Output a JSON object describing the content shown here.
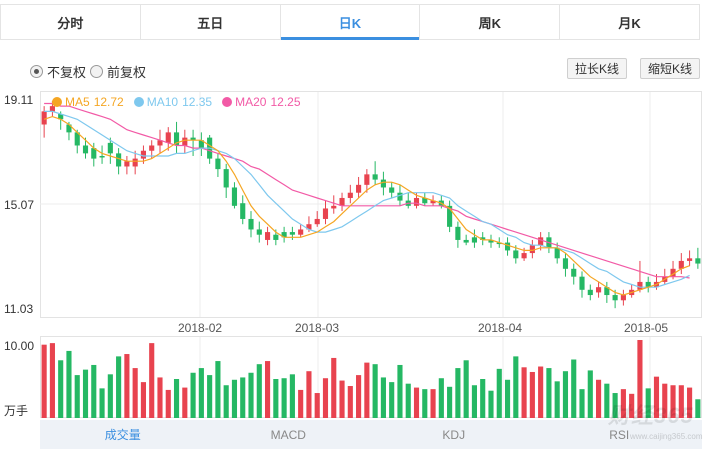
{
  "tabs": [
    {
      "label": "分时",
      "active": false
    },
    {
      "label": "五日",
      "active": false
    },
    {
      "label": "日K",
      "active": true
    },
    {
      "label": "周K",
      "active": false
    },
    {
      "label": "月K",
      "active": false
    }
  ],
  "adjust": {
    "option1": "不复权",
    "option2": "前复权",
    "selected": "不复权"
  },
  "buttons": {
    "lengthen": "拉长K线",
    "shorten": "缩短K线"
  },
  "legend": {
    "ma5": {
      "label": "MA5",
      "value": "12.72",
      "color": "#f5a623"
    },
    "ma10": {
      "label": "MA10",
      "value": "12.35",
      "color": "#7ec8ee"
    },
    "ma20": {
      "label": "MA20",
      "value": "12.25",
      "color": "#f25aa6"
    }
  },
  "price_axis": {
    "top": "19.11",
    "mid": "15.07",
    "bottom": "11.03"
  },
  "date_labels": [
    "2018-02",
    "2018-03",
    "2018-04",
    "2018-05"
  ],
  "volume_axis": {
    "top": "10.00",
    "unit": "万手"
  },
  "bottom_tabs": [
    {
      "label": "成交量",
      "active": true
    },
    {
      "label": "MACD",
      "active": false
    },
    {
      "label": "KDJ",
      "active": false
    },
    {
      "label": "RSI",
      "active": false
    }
  ],
  "watermark": {
    "text": "财经365",
    "sub": "www.caijing365.com"
  },
  "colors": {
    "up": "#e8434f",
    "down": "#25b864",
    "accent": "#3b8fe0"
  },
  "chart_data": {
    "type": "candlestick",
    "ylim": [
      11.03,
      19.11
    ],
    "volume_ylim": [
      0,
      10.0
    ],
    "candles": [
      [
        18.1,
        18.6,
        18.8,
        17.6,
        9.4,
        "up"
      ],
      [
        18.6,
        18.8,
        19.0,
        18.4,
        9.6,
        "up"
      ],
      [
        18.5,
        18.3,
        18.6,
        17.9,
        7.4,
        "down"
      ],
      [
        18.1,
        17.8,
        18.2,
        17.5,
        8.6,
        "down"
      ],
      [
        17.8,
        17.3,
        17.9,
        17.0,
        5.5,
        "down"
      ],
      [
        17.3,
        17.0,
        17.6,
        16.8,
        6.2,
        "down"
      ],
      [
        17.2,
        16.8,
        17.4,
        16.5,
        6.8,
        "down"
      ],
      [
        16.9,
        16.9,
        17.3,
        16.6,
        3.8,
        "down"
      ],
      [
        17.4,
        17.0,
        17.6,
        16.6,
        5.6,
        "down"
      ],
      [
        17.0,
        16.5,
        17.2,
        16.2,
        7.9,
        "down"
      ],
      [
        16.7,
        16.5,
        16.9,
        16.2,
        8.2,
        "up"
      ],
      [
        16.5,
        16.8,
        17.1,
        16.2,
        6.4,
        "up"
      ],
      [
        16.8,
        17.1,
        17.3,
        16.6,
        4.6,
        "up"
      ],
      [
        17.1,
        17.3,
        17.5,
        16.8,
        9.6,
        "up"
      ],
      [
        17.3,
        17.5,
        17.9,
        17.0,
        5.2,
        "up"
      ],
      [
        17.4,
        17.8,
        18.0,
        17.1,
        3.6,
        "up"
      ],
      [
        17.8,
        17.3,
        18.2,
        17.0,
        5.0,
        "down"
      ],
      [
        17.3,
        17.6,
        17.9,
        17.0,
        3.9,
        "up"
      ],
      [
        17.6,
        17.5,
        17.9,
        16.9,
        5.8,
        "down"
      ],
      [
        17.5,
        17.2,
        17.8,
        16.9,
        6.4,
        "down"
      ],
      [
        17.6,
        16.8,
        17.7,
        16.6,
        5.5,
        "down"
      ],
      [
        16.8,
        16.4,
        17.0,
        16.1,
        7.3,
        "down"
      ],
      [
        16.4,
        15.7,
        16.6,
        15.3,
        4.2,
        "down"
      ],
      [
        15.7,
        15.0,
        15.9,
        14.9,
        4.9,
        "down"
      ],
      [
        15.1,
        14.5,
        15.4,
        14.3,
        5.2,
        "down"
      ],
      [
        14.5,
        14.1,
        14.8,
        13.8,
        5.8,
        "down"
      ],
      [
        14.1,
        13.9,
        14.4,
        13.6,
        6.9,
        "down"
      ],
      [
        14.0,
        13.7,
        14.2,
        13.5,
        7.3,
        "up"
      ],
      [
        13.9,
        13.7,
        14.1,
        13.5,
        5.0,
        "down"
      ],
      [
        13.8,
        14.0,
        14.2,
        13.6,
        5.1,
        "down"
      ],
      [
        14.0,
        13.9,
        14.2,
        13.7,
        5.6,
        "down"
      ],
      [
        13.9,
        14.1,
        14.3,
        13.8,
        3.6,
        "up"
      ],
      [
        14.1,
        14.3,
        14.6,
        14.0,
        6.0,
        "up"
      ],
      [
        14.3,
        14.5,
        14.8,
        14.2,
        3.2,
        "up"
      ],
      [
        14.5,
        14.9,
        15.2,
        14.3,
        5.1,
        "up"
      ],
      [
        14.9,
        15.0,
        15.4,
        14.7,
        7.7,
        "up"
      ],
      [
        15.0,
        15.3,
        15.5,
        14.8,
        4.8,
        "up"
      ],
      [
        15.3,
        15.5,
        15.8,
        15.1,
        4.1,
        "up"
      ],
      [
        15.5,
        15.8,
        16.1,
        15.3,
        5.5,
        "up"
      ],
      [
        15.8,
        16.2,
        16.4,
        15.5,
        7.1,
        "up"
      ],
      [
        16.2,
        16.0,
        16.7,
        15.8,
        6.9,
        "down"
      ],
      [
        16.0,
        15.7,
        16.3,
        15.4,
        5.2,
        "down"
      ],
      [
        15.7,
        15.5,
        15.9,
        15.3,
        4.6,
        "down"
      ],
      [
        15.5,
        15.2,
        15.8,
        15.0,
        6.8,
        "down"
      ],
      [
        15.2,
        15.0,
        15.5,
        14.9,
        4.4,
        "down"
      ],
      [
        15.0,
        15.3,
        15.5,
        14.9,
        3.9,
        "up"
      ],
      [
        15.3,
        15.1,
        15.5,
        15.0,
        3.7,
        "down"
      ],
      [
        15.1,
        15.2,
        15.4,
        15.0,
        3.7,
        "up"
      ],
      [
        15.2,
        15.0,
        15.4,
        14.9,
        5.1,
        "down"
      ],
      [
        15.0,
        14.2,
        15.2,
        14.0,
        4.0,
        "down"
      ],
      [
        14.2,
        13.7,
        14.4,
        13.4,
        6.4,
        "down"
      ],
      [
        13.7,
        13.6,
        13.9,
        13.5,
        7.4,
        "down"
      ],
      [
        13.6,
        13.8,
        14.1,
        13.4,
        4.2,
        "down"
      ],
      [
        13.8,
        13.7,
        14.0,
        13.5,
        5.0,
        "down"
      ],
      [
        13.7,
        13.6,
        13.9,
        13.4,
        3.5,
        "down"
      ],
      [
        13.6,
        13.6,
        13.8,
        13.4,
        6.3,
        "down"
      ],
      [
        13.6,
        13.3,
        13.8,
        13.1,
        4.9,
        "down"
      ],
      [
        13.3,
        13.0,
        13.5,
        12.8,
        7.9,
        "down"
      ],
      [
        13.0,
        13.2,
        13.4,
        12.9,
        6.5,
        "up"
      ],
      [
        13.2,
        13.5,
        13.7,
        13.0,
        5.9,
        "up"
      ],
      [
        13.5,
        13.8,
        14.0,
        13.3,
        6.6,
        "up"
      ],
      [
        13.8,
        13.4,
        14.0,
        13.2,
        6.4,
        "down"
      ],
      [
        13.4,
        13.0,
        13.6,
        12.8,
        4.7,
        "down"
      ],
      [
        13.0,
        12.6,
        13.2,
        12.3,
        6.0,
        "down"
      ],
      [
        12.6,
        12.3,
        12.8,
        12.0,
        7.5,
        "down"
      ],
      [
        12.3,
        11.8,
        12.5,
        11.5,
        3.7,
        "down"
      ],
      [
        11.8,
        11.6,
        12.0,
        11.4,
        6.1,
        "down"
      ],
      [
        11.7,
        11.9,
        12.1,
        11.5,
        4.9,
        "up"
      ],
      [
        11.9,
        11.6,
        12.1,
        11.3,
        4.4,
        "down"
      ],
      [
        11.6,
        11.4,
        11.8,
        11.1,
        3.2,
        "down"
      ],
      [
        11.4,
        11.6,
        11.8,
        11.2,
        3.7,
        "up"
      ],
      [
        11.6,
        11.8,
        12.0,
        11.5,
        3.1,
        "up"
      ],
      [
        11.8,
        12.1,
        12.9,
        11.7,
        10.0,
        "up"
      ],
      [
        12.1,
        11.9,
        12.3,
        11.7,
        3.8,
        "down"
      ],
      [
        11.9,
        12.1,
        12.4,
        11.8,
        5.3,
        "up"
      ],
      [
        12.1,
        12.3,
        12.6,
        12.0,
        4.4,
        "up"
      ],
      [
        12.3,
        12.6,
        12.9,
        12.2,
        4.2,
        "up"
      ],
      [
        12.6,
        12.9,
        13.2,
        12.4,
        4.2,
        "up"
      ],
      [
        12.9,
        13.0,
        13.3,
        12.7,
        3.9,
        "up"
      ],
      [
        13.0,
        12.8,
        13.4,
        12.6,
        2.4,
        "down"
      ]
    ],
    "ma5": [
      18.3,
      18.4,
      18.3,
      18.1,
      17.8,
      17.5,
      17.2,
      17.0,
      16.9,
      16.8,
      16.7,
      16.7,
      16.7,
      16.8,
      17.0,
      17.2,
      17.4,
      17.5,
      17.5,
      17.5,
      17.3,
      17.1,
      16.7,
      16.2,
      15.6,
      15.0,
      14.6,
      14.3,
      14.0,
      13.8,
      13.8,
      13.8,
      13.9,
      14.0,
      14.2,
      14.4,
      14.7,
      15.0,
      15.3,
      15.6,
      15.8,
      15.9,
      15.9,
      15.8,
      15.6,
      15.4,
      15.3,
      15.2,
      15.1,
      14.9,
      14.5,
      14.1,
      13.9,
      13.7,
      13.7,
      13.6,
      13.5,
      13.4,
      13.3,
      13.3,
      13.4,
      13.4,
      13.4,
      13.2,
      12.9,
      12.6,
      12.3,
      12.1,
      11.9,
      11.7,
      11.6,
      11.7,
      11.8,
      11.9,
      12.0,
      12.2,
      12.4,
      12.6,
      12.72
    ],
    "ma10": [
      18.6,
      18.6,
      18.5,
      18.4,
      18.3,
      18.1,
      17.9,
      17.7,
      17.5,
      17.3,
      17.1,
      17.0,
      16.9,
      16.9,
      16.9,
      16.9,
      17.0,
      17.0,
      17.1,
      17.2,
      17.2,
      17.1,
      17.0,
      16.8,
      16.5,
      16.2,
      15.8,
      15.4,
      15.1,
      14.8,
      14.5,
      14.3,
      14.1,
      14.0,
      14.0,
      14.1,
      14.2,
      14.4,
      14.6,
      14.8,
      15.0,
      15.2,
      15.3,
      15.4,
      15.5,
      15.5,
      15.5,
      15.5,
      15.4,
      15.3,
      15.0,
      14.8,
      14.6,
      14.4,
      14.3,
      14.1,
      13.9,
      13.8,
      13.6,
      13.5,
      13.5,
      13.4,
      13.4,
      13.3,
      13.2,
      13.0,
      12.8,
      12.6,
      12.5,
      12.3,
      12.1,
      12.0,
      11.9,
      11.9,
      11.9,
      12.0,
      12.1,
      12.2,
      12.35
    ],
    "ma20": [
      18.9,
      18.9,
      18.8,
      18.8,
      18.7,
      18.6,
      18.5,
      18.4,
      18.3,
      18.1,
      17.9,
      17.8,
      17.7,
      17.6,
      17.5,
      17.4,
      17.3,
      17.3,
      17.2,
      17.2,
      17.1,
      17.0,
      16.9,
      16.8,
      16.7,
      16.5,
      16.4,
      16.2,
      16.0,
      15.8,
      15.6,
      15.5,
      15.4,
      15.3,
      15.2,
      15.1,
      15.0,
      15.0,
      15.0,
      15.0,
      15.0,
      15.0,
      15.0,
      15.0,
      15.1,
      15.1,
      15.0,
      15.0,
      15.0,
      14.9,
      14.8,
      14.6,
      14.5,
      14.4,
      14.3,
      14.2,
      14.1,
      14.0,
      13.9,
      13.8,
      13.7,
      13.6,
      13.5,
      13.4,
      13.3,
      13.2,
      13.1,
      13.0,
      12.9,
      12.8,
      12.7,
      12.6,
      12.5,
      12.4,
      12.3,
      12.3,
      12.3,
      12.3,
      12.25
    ]
  }
}
